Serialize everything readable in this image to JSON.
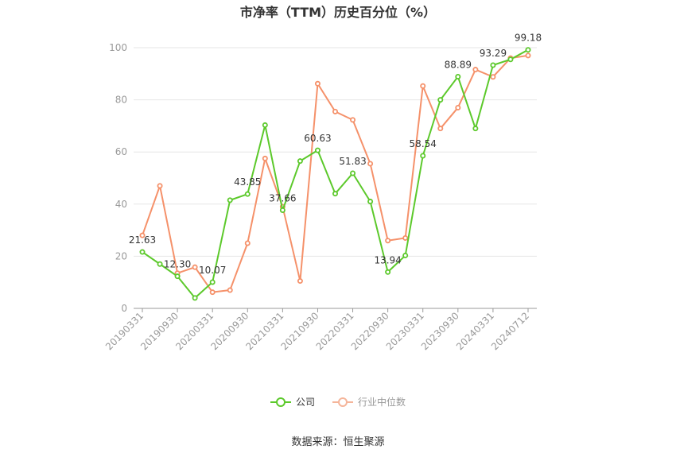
{
  "chart_data": {
    "type": "line",
    "title": "市净率（TTM）历史百分位（%）",
    "ylim": [
      0,
      100
    ],
    "yticks": [
      0,
      20,
      40,
      60,
      80,
      100
    ],
    "grid": true,
    "legend_position": "bottom",
    "x": [
      "20190331",
      "20190630",
      "20190930",
      "20191231",
      "20200331",
      "20200630",
      "20200930",
      "20201231",
      "20210331",
      "20210630",
      "20210930",
      "20211231",
      "20220331",
      "20220630",
      "20220930",
      "20221231",
      "20230331",
      "20230630",
      "20230930",
      "20231231",
      "20240331",
      "20240630",
      "20240712"
    ],
    "x_tick_labels": [
      "20190331",
      "20190930",
      "20200331",
      "20200930",
      "20210331",
      "20210930",
      "20220331",
      "20220930",
      "20230331",
      "20230930",
      "20240331",
      "20240712"
    ],
    "series": [
      {
        "name": "公司",
        "color": "#5cc92b",
        "values": [
          21.63,
          17,
          12.3,
          4,
          10.07,
          41.5,
          43.85,
          70.3,
          37.66,
          56.5,
          60.63,
          44,
          51.83,
          41,
          13.94,
          20.3,
          58.54,
          80,
          88.89,
          69,
          93.29,
          95.5,
          99.18
        ],
        "labels": {
          "0": "21.63",
          "2": "12.30",
          "4": "10.07",
          "6": "43.85",
          "8": "37.66",
          "10": "60.63",
          "12": "51.83",
          "14": "13.94",
          "16": "58.54",
          "18": "88.89",
          "20": "93.29",
          "22": "99.18"
        }
      },
      {
        "name": "行业中位数",
        "color": "#f5916a",
        "values": [
          28,
          47,
          13.5,
          15.8,
          6.2,
          7,
          25,
          57.5,
          39,
          10.5,
          86.2,
          75.5,
          72.3,
          55.5,
          26,
          27,
          85.3,
          69,
          77,
          91.6,
          88.8,
          96,
          97
        ]
      }
    ]
  },
  "legend": {
    "company": "公司",
    "industry": "行业中位数"
  },
  "source": "数据来源：恒生聚源"
}
